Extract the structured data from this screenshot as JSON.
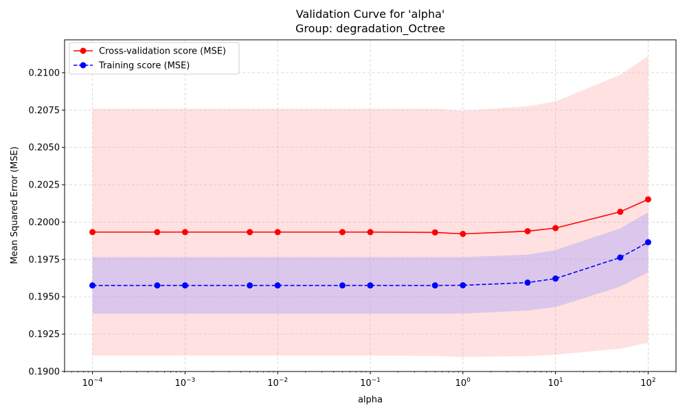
{
  "chart_data": {
    "type": "line",
    "title_line1": "Validation Curve for 'alpha'",
    "title_line2": "Group: degradation_Octree",
    "xlabel": "alpha",
    "ylabel": "Mean Squared Error (MSE)",
    "x_scale": "log",
    "xlim": [
      5e-05,
      200
    ],
    "ylim": [
      0.19,
      0.2122
    ],
    "grid": true,
    "legend_position": "top-left",
    "x": [
      0.0001,
      0.0005,
      0.001,
      0.005,
      0.01,
      0.05,
      0.1,
      0.5,
      1,
      5,
      10,
      50,
      100
    ],
    "x_ticks": [
      {
        "value": 0.0001,
        "base": "10",
        "exp": "−4"
      },
      {
        "value": 0.001,
        "base": "10",
        "exp": "−3"
      },
      {
        "value": 0.01,
        "base": "10",
        "exp": "−2"
      },
      {
        "value": 0.1,
        "base": "10",
        "exp": "−1"
      },
      {
        "value": 1,
        "base": "10",
        "exp": "0"
      },
      {
        "value": 10,
        "base": "10",
        "exp": "1"
      },
      {
        "value": 100,
        "base": "10",
        "exp": "2"
      }
    ],
    "y_ticks": [
      {
        "value": 0.19,
        "label": "0.1900"
      },
      {
        "value": 0.1925,
        "label": "0.1925"
      },
      {
        "value": 0.195,
        "label": "0.1950"
      },
      {
        "value": 0.1975,
        "label": "0.1975"
      },
      {
        "value": 0.2,
        "label": "0.2000"
      },
      {
        "value": 0.2025,
        "label": "0.2025"
      },
      {
        "value": 0.205,
        "label": "0.2050"
      },
      {
        "value": 0.2075,
        "label": "0.2075"
      },
      {
        "value": 0.21,
        "label": "0.2100"
      }
    ],
    "series": [
      {
        "name": "Cross-validation score (MSE)",
        "color": "#ff0000",
        "band_color": "#ffaaaa",
        "dashed": false,
        "values": [
          0.19933,
          0.19933,
          0.19933,
          0.19933,
          0.19933,
          0.19933,
          0.19933,
          0.19931,
          0.19921,
          0.19939,
          0.1996,
          0.20069,
          0.20152
        ],
        "upper": [
          0.20758,
          0.20758,
          0.20758,
          0.20758,
          0.20758,
          0.20758,
          0.20758,
          0.20758,
          0.20745,
          0.20775,
          0.20808,
          0.20985,
          0.21112
        ],
        "lower": [
          0.19107,
          0.19107,
          0.19107,
          0.19107,
          0.19107,
          0.19107,
          0.19107,
          0.19104,
          0.19097,
          0.19103,
          0.19112,
          0.19153,
          0.19192
        ]
      },
      {
        "name": "Training score (MSE)",
        "color": "#0000ff",
        "band_color": "#9999ff",
        "dashed": true,
        "values": [
          0.19576,
          0.19576,
          0.19576,
          0.19576,
          0.19576,
          0.19576,
          0.19576,
          0.19576,
          0.19577,
          0.19595,
          0.19622,
          0.19763,
          0.19865
        ],
        "upper": [
          0.19765,
          0.19765,
          0.19765,
          0.19765,
          0.19765,
          0.19765,
          0.19765,
          0.19765,
          0.19765,
          0.19782,
          0.19813,
          0.19958,
          0.20066
        ],
        "lower": [
          0.19387,
          0.19387,
          0.19387,
          0.19387,
          0.19387,
          0.19387,
          0.19387,
          0.19387,
          0.19388,
          0.19408,
          0.19431,
          0.19568,
          0.19664
        ]
      }
    ]
  }
}
